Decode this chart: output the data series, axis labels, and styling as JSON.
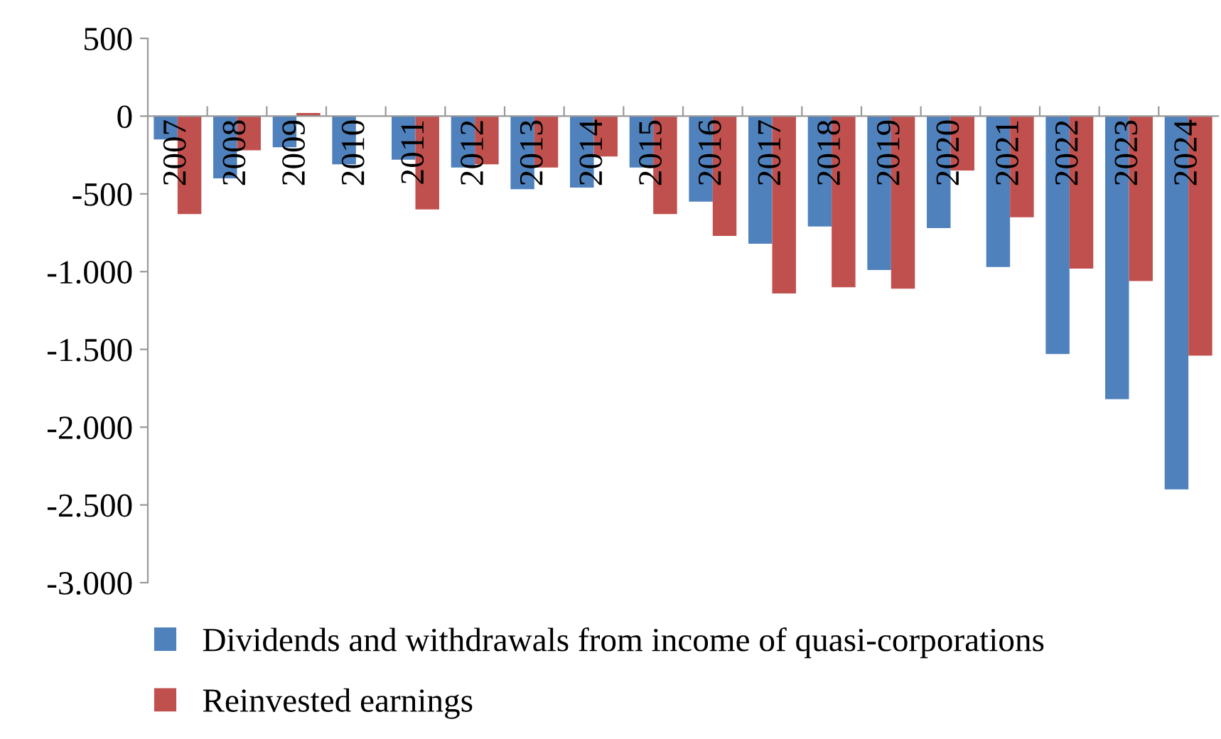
{
  "chart_data": {
    "type": "bar",
    "categories": [
      "2007",
      "2008",
      "2009",
      "2010",
      "2011",
      "2012",
      "2013",
      "2014",
      "2015",
      "2016",
      "2017",
      "2018",
      "2019",
      "2020",
      "2021",
      "2022",
      "2023",
      "2024"
    ],
    "series": [
      {
        "name": "Dividends and withdrawals from income of quasi-corporations",
        "color": "#4f81bd",
        "values": [
          -150,
          -400,
          -200,
          -310,
          -280,
          -330,
          -470,
          -460,
          -330,
          -550,
          -820,
          -710,
          -990,
          -720,
          -970,
          -1530,
          -1820,
          -2400
        ]
      },
      {
        "name": "Reinvested earnings",
        "color": "#c0504d",
        "values": [
          -630,
          -220,
          20,
          0,
          -600,
          -310,
          -330,
          -260,
          -630,
          -770,
          -1140,
          -1100,
          -1110,
          -350,
          -650,
          -980,
          -1060,
          -1540
        ]
      }
    ],
    "ylim": [
      -3000,
      500
    ],
    "yticks": [
      500,
      0,
      {
        "value": -500,
        "label": "-500"
      },
      {
        "value": -1000,
        "label": "-1.000"
      },
      {
        "value": -1500,
        "label": "-1.500"
      },
      {
        "value": -2000,
        "label": "-2.000"
      },
      {
        "value": -2500,
        "label": "-2.500"
      },
      {
        "value": -3000,
        "label": "-3.000"
      }
    ],
    "grid": false,
    "legend": "bottom left"
  }
}
